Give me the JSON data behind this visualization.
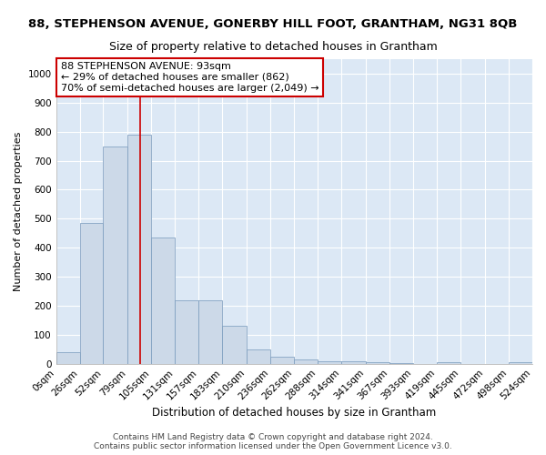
{
  "title": "88, STEPHENSON AVENUE, GONERBY HILL FOOT, GRANTHAM, NG31 8QB",
  "subtitle": "Size of property relative to detached houses in Grantham",
  "xlabel": "Distribution of detached houses by size in Grantham",
  "ylabel": "Number of detached properties",
  "bar_color": "#ccd9e8",
  "bar_edge_color": "#7799bb",
  "background_color": "#dce8f5",
  "grid_color": "#ffffff",
  "bin_edges": [
    0,
    26,
    52,
    79,
    105,
    131,
    157,
    183,
    210,
    236,
    262,
    288,
    314,
    341,
    367,
    393,
    419,
    445,
    472,
    498,
    524
  ],
  "bin_labels": [
    "0sqm",
    "26sqm",
    "52sqm",
    "79sqm",
    "105sqm",
    "131sqm",
    "157sqm",
    "183sqm",
    "210sqm",
    "236sqm",
    "262sqm",
    "288sqm",
    "314sqm",
    "341sqm",
    "367sqm",
    "393sqm",
    "419sqm",
    "445sqm",
    "472sqm",
    "498sqm",
    "524sqm"
  ],
  "bar_heights": [
    40,
    485,
    750,
    790,
    435,
    220,
    220,
    130,
    50,
    25,
    15,
    10,
    8,
    5,
    2,
    0,
    5,
    0,
    0,
    5
  ],
  "property_size": 93,
  "vline_color": "#cc0000",
  "annotation_text": "88 STEPHENSON AVENUE: 93sqm\n← 29% of detached houses are smaller (862)\n70% of semi-detached houses are larger (2,049) →",
  "annotation_box_color": "#ffffff",
  "annotation_box_edge_color": "#cc0000",
  "ylim": [
    0,
    1050
  ],
  "yticks": [
    0,
    100,
    200,
    300,
    400,
    500,
    600,
    700,
    800,
    900,
    1000
  ],
  "footer_text": "Contains HM Land Registry data © Crown copyright and database right 2024.\nContains public sector information licensed under the Open Government Licence v3.0.",
  "title_fontsize": 9.5,
  "subtitle_fontsize": 9,
  "xlabel_fontsize": 8.5,
  "ylabel_fontsize": 8,
  "tick_fontsize": 7.5,
  "annotation_fontsize": 8,
  "footer_fontsize": 6.5
}
